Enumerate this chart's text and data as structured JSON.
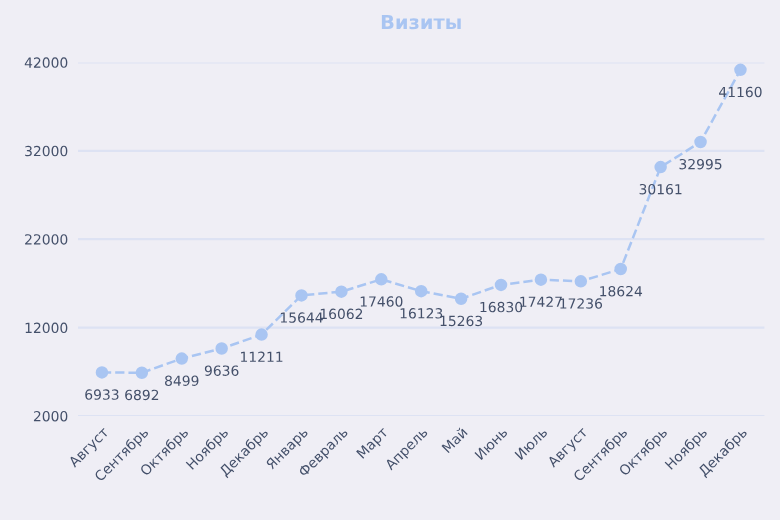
{
  "chart_data": {
    "type": "line",
    "title": "Визиты",
    "categories": [
      "Август",
      "Сентябрь",
      "Октябрь",
      "Ноябрь",
      "Декабрь",
      "Январь",
      "Февраль",
      "Март",
      "Апрель",
      "Май",
      "Июнь",
      "Июль",
      "Август",
      "Сентябрь",
      "Октябрь",
      "Ноябрь",
      "Декабрь"
    ],
    "series": [
      {
        "color": "#a9c5f2",
        "values": [
          6933,
          6892,
          8499,
          9636,
          11211,
          15644,
          16062,
          17460,
          16123,
          15263,
          16830,
          17427,
          17236,
          18624,
          30161,
          32995,
          41160
        ]
      }
    ],
    "ylim": [
      2000,
      42000
    ],
    "yticks": [
      2000,
      12000,
      22000,
      32000,
      42000
    ],
    "grid": "y",
    "marker": "circle",
    "line_style": "dashed",
    "data_labels": true,
    "legend": false
  }
}
